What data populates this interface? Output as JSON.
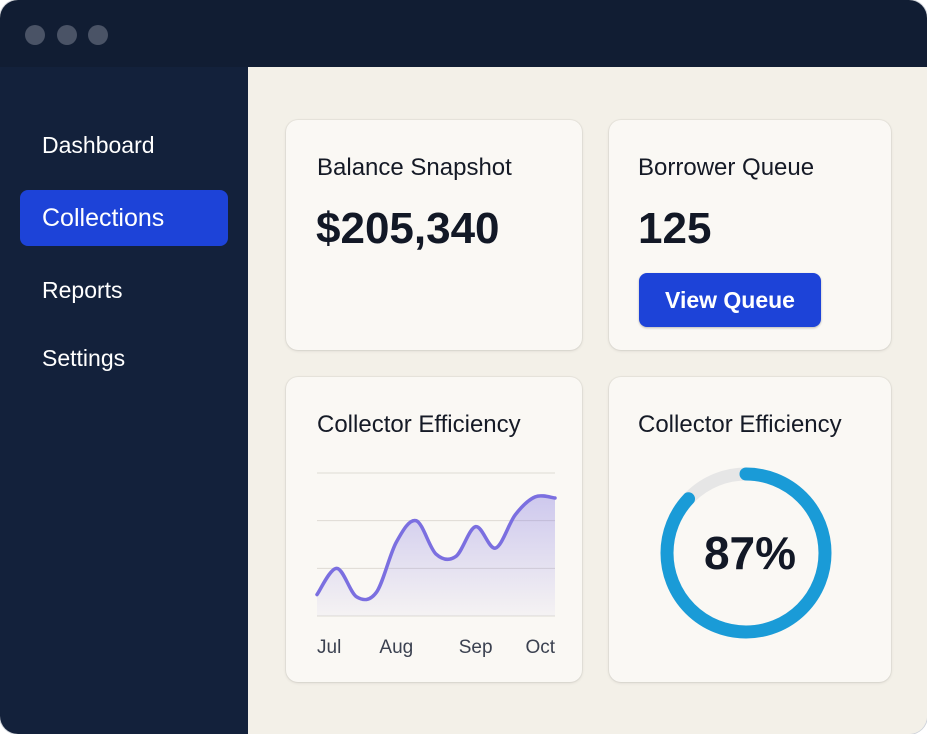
{
  "sidebar": {
    "items": [
      {
        "label": "Dashboard",
        "active": false
      },
      {
        "label": "Collections",
        "active": true
      },
      {
        "label": "Reports",
        "active": false
      },
      {
        "label": "Settings",
        "active": false
      }
    ]
  },
  "cards": {
    "balance": {
      "title": "Balance Snapshot",
      "value": "$205,340"
    },
    "queue": {
      "title": "Borrower Queue",
      "value": "125",
      "button_label": "View Queue"
    },
    "efficiency_chart": {
      "title": "Collector Efficiency"
    },
    "efficiency_gauge": {
      "title": "Collector Efficiency",
      "value_label": "87%",
      "value": 0.87
    }
  },
  "colors": {
    "accent": "#1d43d8",
    "sidebar": "#13213b",
    "line": "#7b6fe0",
    "gauge": "#1a9bd7",
    "gauge_track": "#e6e6e6"
  },
  "chart_data": {
    "type": "area",
    "categories": [
      "Jul",
      "Aug",
      "Sep",
      "Oct"
    ],
    "x": [
      0,
      0.25,
      0.5,
      0.75,
      1.0,
      1.25,
      1.5,
      1.75,
      2.0,
      2.25,
      2.5,
      2.75,
      3.0
    ],
    "series": [
      {
        "values": [
          18,
          40,
          16,
          20,
          62,
          80,
          52,
          50,
          75,
          57,
          85,
          100,
          99
        ]
      }
    ],
    "ylim": [
      0,
      120
    ],
    "grid": true
  }
}
